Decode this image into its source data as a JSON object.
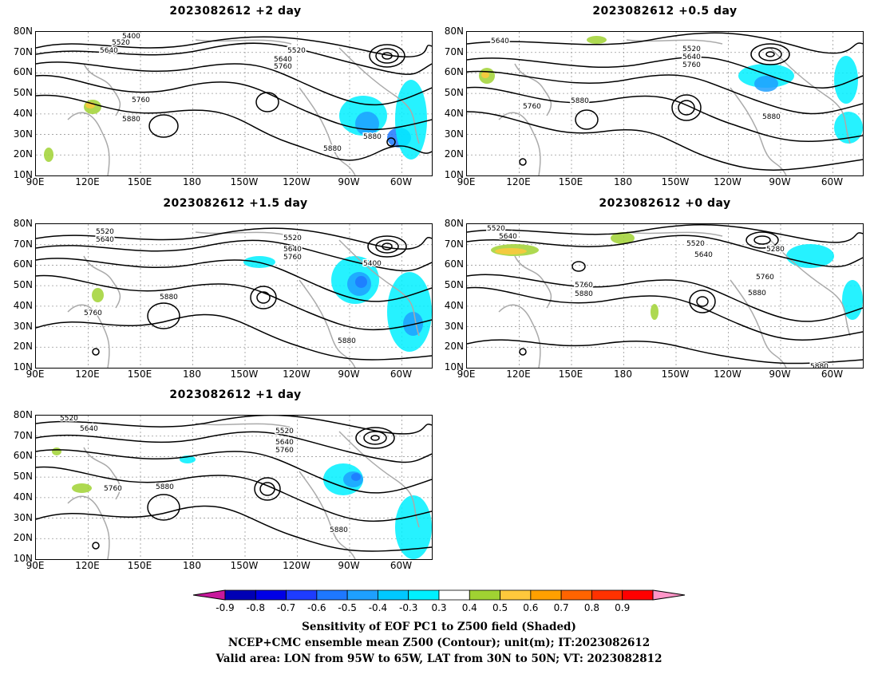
{
  "panels": [
    {
      "id": "p1",
      "title": "2023082612 +2 day",
      "contour_labels": [
        "5400",
        "5520",
        "5640",
        "5760",
        "5880",
        "5520",
        "5640",
        "5760",
        "5880",
        "5880"
      ]
    },
    {
      "id": "p2",
      "title": "2023082612 +0.5 day",
      "contour_labels": [
        "5640",
        "5760",
        "5880",
        "5520",
        "5640",
        "5760",
        "5880"
      ]
    },
    {
      "id": "p3",
      "title": "2023082612 +1.5 day",
      "contour_labels": [
        "5520",
        "5640",
        "5760",
        "5880",
        "5520",
        "5640",
        "5760",
        "5400",
        "5880"
      ]
    },
    {
      "id": "p4",
      "title": "2023082612 +0 day",
      "contour_labels": [
        "5520",
        "5640",
        "5760",
        "5880",
        "5520",
        "5640",
        "5280",
        "5760",
        "5880",
        "5880"
      ]
    },
    {
      "id": "p5",
      "title": "2023082612 +1 day",
      "contour_labels": [
        "5520",
        "5640",
        "5760",
        "5880",
        "5520",
        "5640",
        "5760",
        "5880"
      ]
    }
  ],
  "lat_labels": [
    "80N",
    "70N",
    "60N",
    "50N",
    "40N",
    "30N",
    "20N",
    "10N"
  ],
  "lon_labels": [
    "90E",
    "120E",
    "150E",
    "180",
    "150W",
    "120W",
    "90W",
    "60W"
  ],
  "colorbar": {
    "levels": [
      "-0.9",
      "-0.8",
      "-0.7",
      "-0.6",
      "-0.5",
      "-0.4",
      "-0.3",
      "0.3",
      "0.4",
      "0.5",
      "0.6",
      "0.7",
      "0.8",
      "0.9"
    ],
    "colors": [
      "#c8199c",
      "#0000b4",
      "#0000e6",
      "#1e3cff",
      "#1e78ff",
      "#1ea0ff",
      "#00c8ff",
      "#00f0ff",
      "#ffffff",
      "#a0d232",
      "#ffc83c",
      "#ffa000",
      "#ff6400",
      "#ff3200",
      "#ff0000",
      "#ff96c8"
    ]
  },
  "footer": {
    "line1": "Sensitivity of EOF PC1 to Z500 field (Shaded)",
    "line2": "NCEP+CMC ensemble mean Z500 (Contour); unit(m); IT:2023082612",
    "line3": "Valid area: LON from 95W to 65W, LAT from 30N to 50N; VT: 2023082812"
  }
}
